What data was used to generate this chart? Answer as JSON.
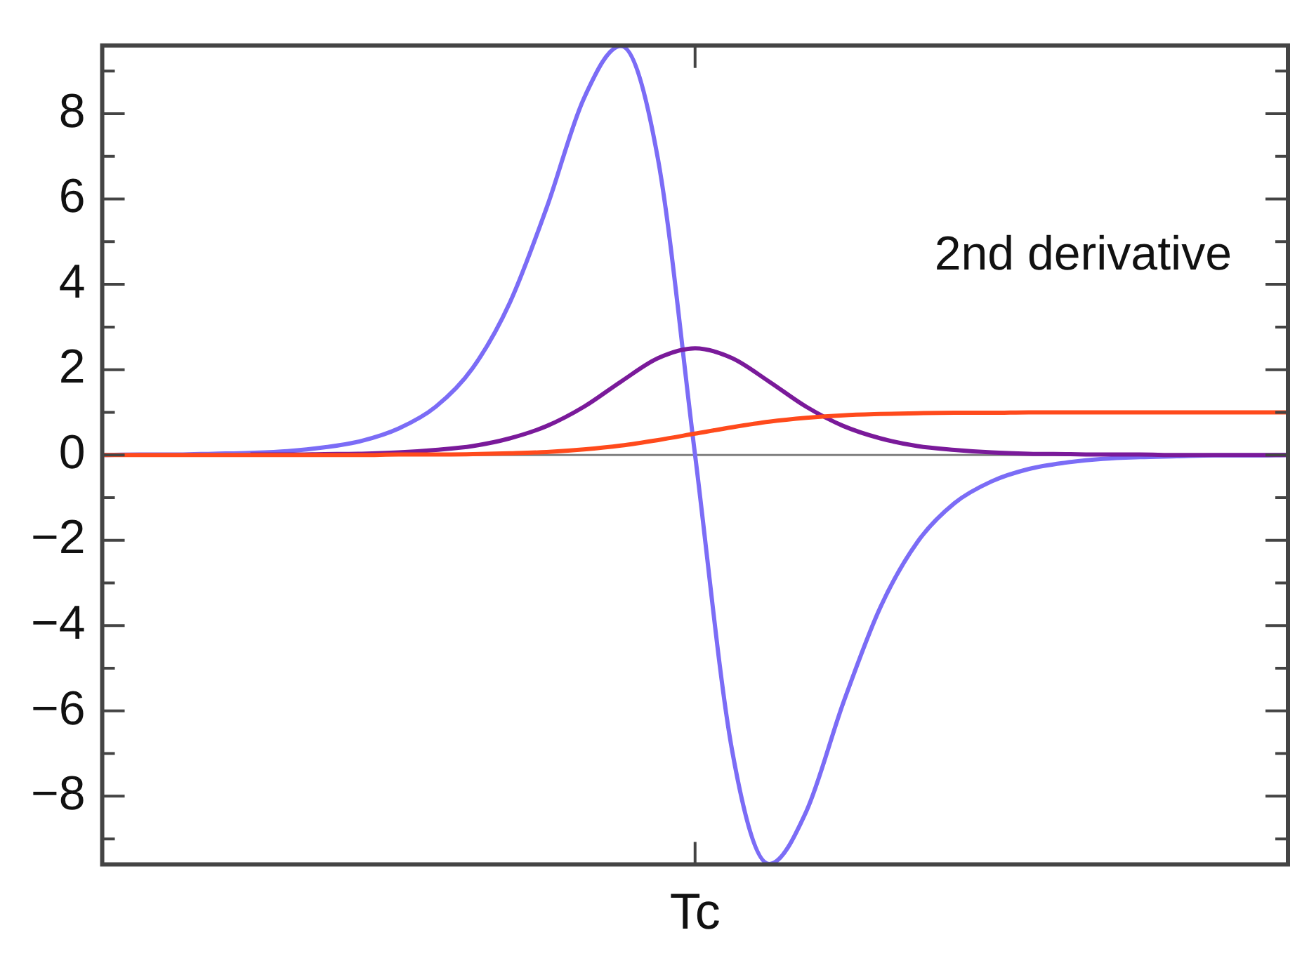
{
  "chart_data": {
    "type": "line",
    "categories": [
      null,
      null,
      null,
      null,
      null,
      null,
      null,
      null,
      null,
      null,
      null,
      null,
      null,
      null,
      null,
      null,
      null,
      null,
      null,
      null,
      null,
      null,
      null,
      null,
      null,
      null,
      null,
      null,
      null,
      null,
      null,
      null,
      null
    ],
    "series": [
      {
        "color": "#ff4a1c",
        "values": [
          0,
          0,
          0,
          0,
          0,
          0,
          0,
          0,
          0.01,
          0.01,
          0.02,
          0.04,
          0.07,
          0.13,
          0.22,
          0.35,
          0.5,
          0.65,
          0.78,
          0.87,
          0.93,
          0.96,
          0.98,
          0.99,
          0.99,
          1,
          1,
          1,
          1,
          1,
          1,
          1,
          1
        ]
      },
      {
        "color": "#7a1a9a",
        "values": [
          null,
          null,
          null,
          null,
          0.01,
          0.01,
          0.02,
          0.03,
          0.06,
          0.12,
          0.21,
          0.39,
          0.68,
          1.13,
          1.72,
          2.27,
          2.5,
          2.27,
          1.72,
          1.13,
          0.68,
          0.39,
          0.21,
          0.12,
          0.06,
          0.03,
          0.02,
          0.01,
          0.01,
          0,
          0,
          0,
          0
        ]
      },
      {
        "color": "#7b6cf6",
        "values": [
          0,
          0.01,
          0.01,
          0.03,
          0.05,
          0.09,
          0.18,
          0.33,
          0.62,
          1.13,
          2.04,
          3.57,
          5.81,
          8.36,
          9.59,
          6.93,
          0,
          -6.93,
          -9.59,
          -8.36,
          -5.81,
          -3.57,
          -2.04,
          -1.13,
          -0.62,
          -0.33,
          -0.18,
          -0.09,
          -0.05,
          -0.03,
          -0.01,
          -0.01,
          0
        ]
      }
    ],
    "xlabel": "Tc",
    "ylim": [
      -9.6,
      9.6
    ],
    "yticks": [
      {
        "value": -9,
        "label": null
      },
      {
        "value": -8,
        "label": "−8"
      },
      {
        "value": -7,
        "label": null
      },
      {
        "value": -6,
        "label": "−6"
      },
      {
        "value": -5,
        "label": null
      },
      {
        "value": -4,
        "label": "−4"
      },
      {
        "value": -3,
        "label": null
      },
      {
        "value": -2,
        "label": "−2"
      },
      {
        "value": -1,
        "label": null
      },
      {
        "value": 0,
        "label": "0"
      },
      {
        "value": 1,
        "label": null
      },
      {
        "value": 2,
        "label": "2"
      },
      {
        "value": 3,
        "label": null
      },
      {
        "value": 4,
        "label": "4"
      },
      {
        "value": 5,
        "label": null
      },
      {
        "value": 6,
        "label": "6"
      },
      {
        "value": 7,
        "label": null
      },
      {
        "value": 8,
        "label": "8"
      },
      {
        "value": 9,
        "label": null
      }
    ],
    "ref_lines": [
      {
        "axis": "y",
        "value": 0,
        "color": "#808080"
      }
    ],
    "annotations": [
      "2nd derivative"
    ],
    "grid": false,
    "legend": false
  }
}
